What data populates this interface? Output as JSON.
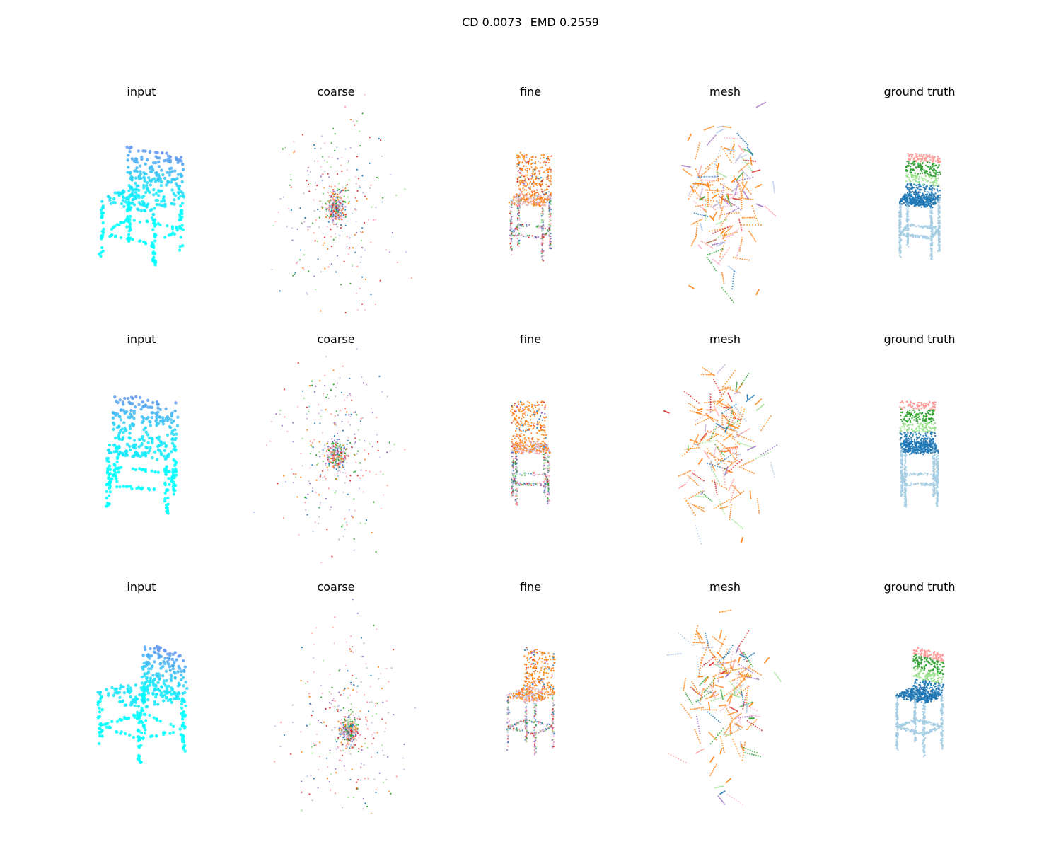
{
  "chart_data": {
    "type": "scatter",
    "subtype": "3d point cloud grid",
    "title": "CD 0.0073  EMD 0.2559",
    "metrics": [
      {
        "label": "CD",
        "value": "0.0073"
      },
      {
        "label": "EMD",
        "value": "0.2559"
      }
    ],
    "columns": [
      "input",
      "coarse",
      "fine",
      "mesh",
      "ground truth"
    ],
    "rows": 3,
    "object": "chair",
    "grid": false,
    "axes_visible": false,
    "colors": {
      "input_top": "#6495ed",
      "input_bottom": "#00ffff",
      "pred_palette": [
        "#ff7f0e",
        "#d62728",
        "#1f77b4",
        "#9467bd",
        "#2ca02c",
        "#ff9896",
        "#c5b0d5",
        "#aec7e8",
        "#98df8a",
        "#f7b6d2"
      ],
      "gt_back_top": "#ff9896",
      "gt_back_mid": "#2ca02c",
      "gt_back_low": "#98df8a",
      "gt_seat": "#1f77b4",
      "gt_legs": "#a6cee3"
    }
  }
}
